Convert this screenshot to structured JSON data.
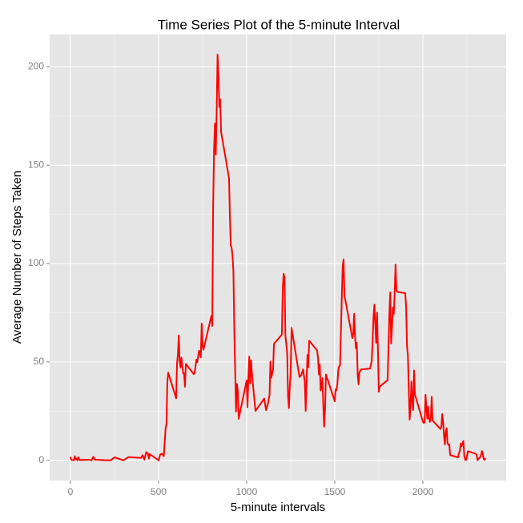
{
  "chart_data": {
    "type": "line",
    "title": "Time Series Plot of the 5-minute Interval",
    "x_label": "5-minute intervals",
    "y_label": "Average Number of Steps Taken",
    "x": [
      0,
      5,
      10,
      15,
      20,
      25,
      30,
      35,
      40,
      45,
      50,
      55,
      100,
      110,
      120,
      130,
      140,
      150,
      200,
      230,
      250,
      300,
      330,
      400,
      410,
      420,
      430,
      440,
      445,
      450,
      500,
      510,
      520,
      530,
      540,
      545,
      550,
      555,
      600,
      605,
      610,
      615,
      620,
      625,
      630,
      640,
      645,
      650,
      655,
      700,
      705,
      715,
      720,
      730,
      740,
      745,
      750,
      755,
      800,
      805,
      810,
      815,
      820,
      825,
      830,
      835,
      840,
      845,
      850,
      855,
      900,
      905,
      910,
      915,
      920,
      925,
      930,
      935,
      940,
      945,
      950,
      955,
      1000,
      1005,
      1010,
      1015,
      1020,
      1025,
      1030,
      1040,
      1050,
      1100,
      1110,
      1120,
      1130,
      1135,
      1140,
      1150,
      1155,
      1200,
      1205,
      1210,
      1215,
      1220,
      1230,
      1235,
      1240,
      1245,
      1250,
      1255,
      1300,
      1310,
      1320,
      1330,
      1335,
      1340,
      1345,
      1350,
      1355,
      1400,
      1405,
      1410,
      1415,
      1420,
      1425,
      1430,
      1435,
      1440,
      1445,
      1450,
      1500,
      1505,
      1510,
      1515,
      1520,
      1525,
      1530,
      1535,
      1540,
      1545,
      1550,
      1555,
      1600,
      1605,
      1610,
      1615,
      1620,
      1625,
      1630,
      1635,
      1640,
      1645,
      1650,
      1700,
      1710,
      1715,
      1720,
      1725,
      1730,
      1735,
      1740,
      1745,
      1750,
      1755,
      1800,
      1805,
      1810,
      1815,
      1820,
      1825,
      1830,
      1835,
      1840,
      1845,
      1850,
      1855,
      1900,
      1905,
      1910,
      1915,
      1920,
      1925,
      1930,
      1935,
      1940,
      1945,
      1950,
      1955,
      2000,
      2005,
      2010,
      2015,
      2020,
      2025,
      2030,
      2035,
      2040,
      2045,
      2050,
      2055,
      2100,
      2105,
      2110,
      2115,
      2120,
      2125,
      2130,
      2135,
      2140,
      2145,
      2150,
      2155,
      2200,
      2205,
      2210,
      2215,
      2220,
      2225,
      2230,
      2235,
      2240,
      2245,
      2250,
      2255,
      2300,
      2305,
      2310,
      2315,
      2320,
      2325,
      2330,
      2335,
      2340,
      2345,
      2350,
      2355
    ],
    "series": [
      {
        "name": "steps",
        "color": "#ff0000",
        "values": [
          1.7,
          0.3,
          0.1,
          0.2,
          0,
          2.1,
          0.5,
          0.9,
          0,
          1.5,
          0.3,
          0.1,
          0.3,
          0.2,
          0,
          1.8,
          0.2,
          0.3,
          0,
          0,
          1.5,
          0,
          1.6,
          1.2,
          2.6,
          0.3,
          4.1,
          3.5,
          0.8,
          3.1,
          0,
          3.0,
          3.3,
          2.1,
          16,
          18.3,
          39.5,
          44.5,
          31.5,
          49.3,
          53.8,
          63.5,
          50,
          47.1,
          52.2,
          44.1,
          44.2,
          37.4,
          49,
          43.8,
          44.4,
          51.2,
          49.9,
          55.7,
          52.3,
          69.5,
          57.8,
          56.2,
          73.4,
          68.2,
          129.4,
          157.5,
          171.2,
          155.4,
          177.3,
          206.2,
          195.9,
          179.6,
          183.4,
          167,
          143.5,
          124,
          109.1,
          108.1,
          103.7,
          95.9,
          66.2,
          45.2,
          24.8,
          38.8,
          35,
          21.1,
          40.6,
          27,
          42.4,
          52.7,
          38.9,
          50.8,
          44.3,
          34.6,
          25.1,
          31.4,
          25.5,
          28.4,
          33.3,
          50.2,
          42,
          46.1,
          59.2,
          63.9,
          87.7,
          94.8,
          92.8,
          63.4,
          54.5,
          32.4,
          26.5,
          37.7,
          45.1,
          67.3,
          42.3,
          43.3,
          46.2,
          40.0,
          25.1,
          39.5,
          53.5,
          47.3,
          60.8,
          55.8,
          51.9,
          43.6,
          48.7,
          35.5,
          37.5,
          41.8,
          27.5,
          17.1,
          26.1,
          43.6,
          30,
          36.1,
          35.5,
          38.8,
          46,
          47.8,
          48.1,
          65.3,
          82.9,
          98.7,
          102.1,
          83.9,
          62.1,
          64.1,
          74.5,
          63.2,
          56.9,
          59.8,
          43.9,
          38.6,
          44.7,
          45.5,
          46.2,
          46.6,
          50.7,
          61,
          73.4,
          79.1,
          68.9,
          59.7,
          75.1,
          56.5,
          34.8,
          37.5,
          40.7,
          58,
          74.7,
          85.3,
          59.3,
          67.8,
          77.7,
          74.2,
          85.3,
          99.5,
          86.6,
          85.6,
          84.9,
          77.8,
          58,
          53.4,
          36.3,
          20.7,
          27.4,
          40,
          30.2,
          25.5,
          45.7,
          33.5,
          19.6,
          19,
          19.3,
          33.3,
          26.8,
          21.2,
          27.3,
          21.3,
          19.5,
          21.3,
          32.3,
          20.2,
          15.9,
          17.2,
          23.5,
          19.2,
          12.5,
          8,
          14.7,
          16.3,
          8.7,
          7.8,
          8.1,
          2.6,
          1.5,
          3.7,
          4.8,
          8.5,
          7.1,
          8.7,
          9.8,
          2.2,
          0.3,
          0.1,
          1.6,
          4.6,
          3.3,
          2.8,
          0,
          0.8,
          1,
          1.6,
          2.6,
          4.7,
          3.3,
          0.6,
          0.2,
          1.1
        ]
      }
    ],
    "xlim": [
      -117.75,
      2472.75
    ],
    "ylim": [
      -10.31,
      216.48
    ],
    "xticks": [
      0,
      500,
      1000,
      1500,
      2000
    ],
    "yticks": [
      0,
      50,
      100,
      150,
      200
    ],
    "xminor_ticks": [
      250,
      750,
      1250,
      1750,
      2250
    ],
    "yminor_ticks": [
      25,
      75,
      125,
      175
    ],
    "grid": true
  }
}
